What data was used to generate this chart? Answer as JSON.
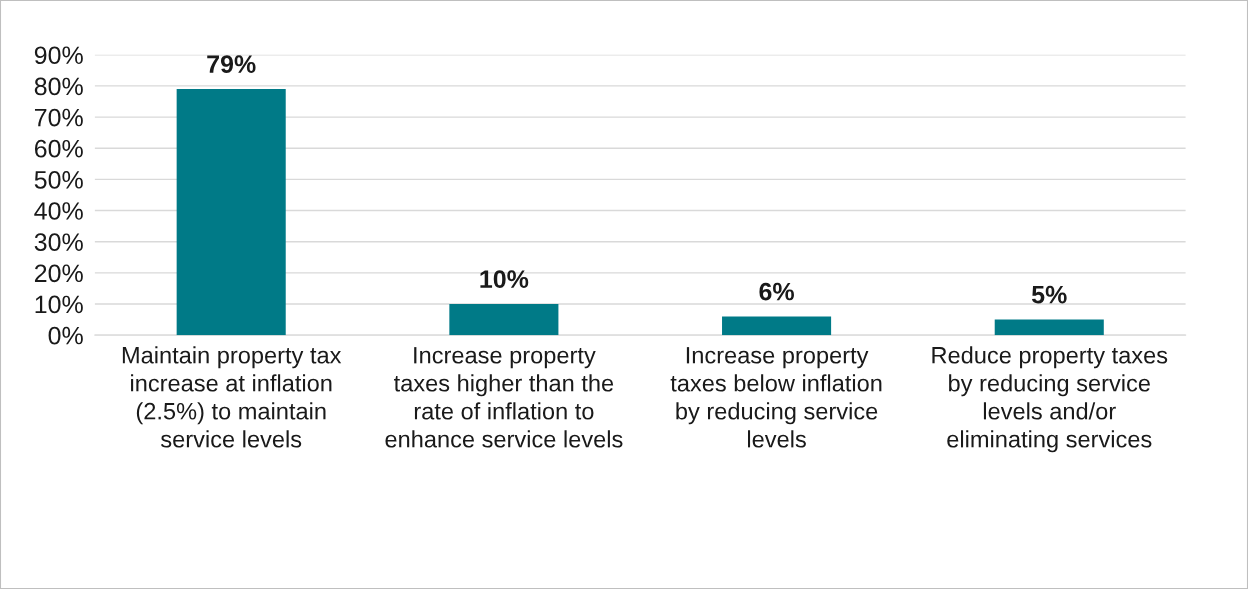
{
  "chart_data": {
    "type": "bar",
    "categories": [
      "Maintain property tax\nincrease at inflation\n(2.5%) to maintain\nservice levels",
      "Increase property\ntaxes higher than the\nrate of inflation to\nenhance service levels",
      "Increase property\ntaxes below inflation\nby reducing service\nlevels",
      "Reduce property taxes\nby reducing service\nlevels and/or\neliminating services"
    ],
    "values": [
      79,
      10,
      6,
      5
    ],
    "value_labels": [
      "79%",
      "10%",
      "6%",
      "5%"
    ],
    "color": "#007a87",
    "ylim": [
      0,
      90
    ],
    "yticks": [
      {
        "value": 0,
        "label": "0%"
      },
      {
        "value": 10,
        "label": "10%"
      },
      {
        "value": 20,
        "label": "20%"
      },
      {
        "value": 30,
        "label": "30%"
      },
      {
        "value": 40,
        "label": "40%"
      },
      {
        "value": 50,
        "label": "50%"
      },
      {
        "value": 60,
        "label": "60%"
      },
      {
        "value": 70,
        "label": "70%"
      },
      {
        "value": 80,
        "label": "80%"
      },
      {
        "value": 90,
        "label": "90%"
      }
    ],
    "grid": "y"
  }
}
